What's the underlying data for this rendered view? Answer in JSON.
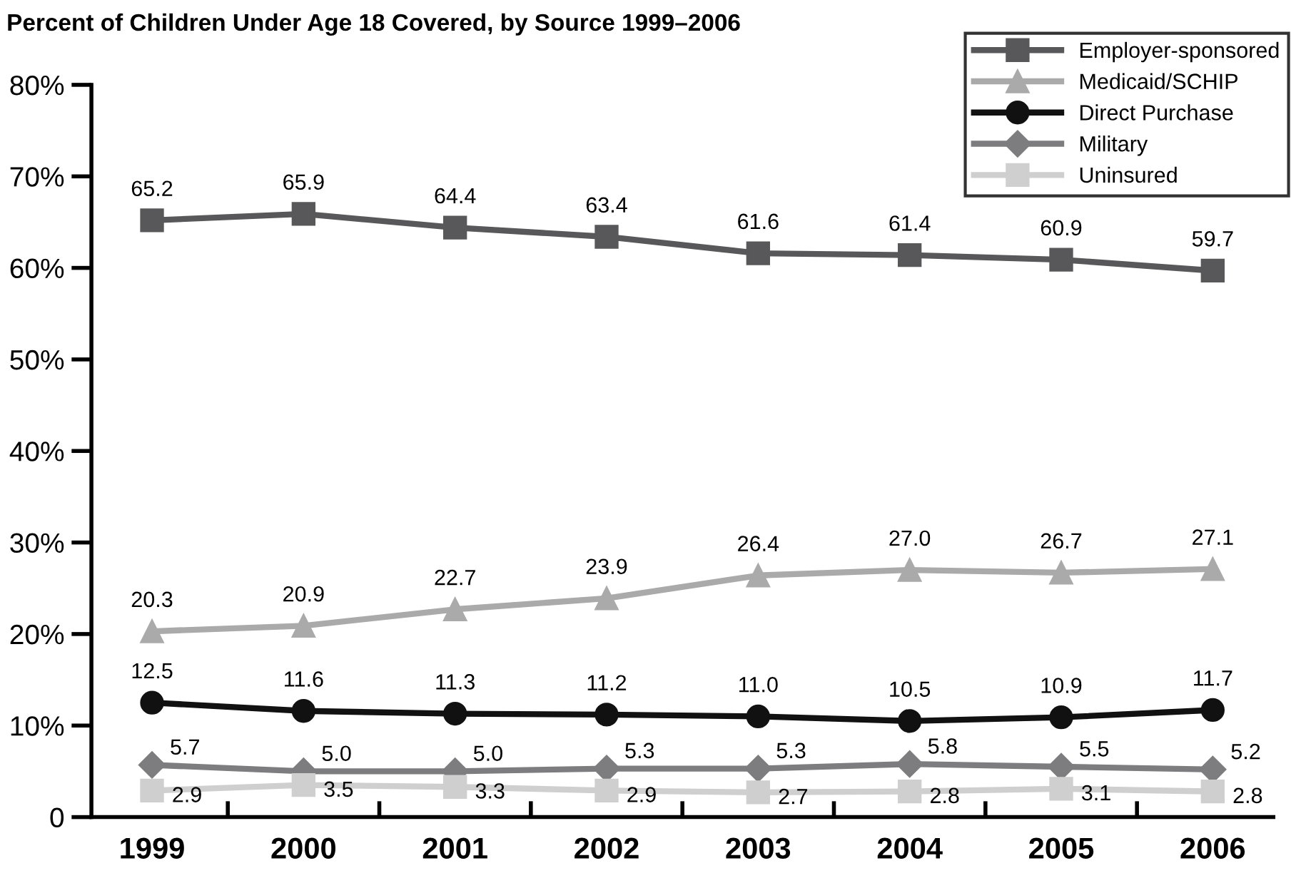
{
  "chart_data": {
    "type": "line",
    "title": "Percent of Children Under Age 18 Covered, by Source 1999–2006",
    "categories": [
      "1999",
      "2000",
      "2001",
      "2002",
      "2003",
      "2004",
      "2005",
      "2006"
    ],
    "series": [
      {
        "name": "Employer-sponsored",
        "color": "#58585a",
        "marker": "square",
        "values": [
          65.2,
          65.9,
          64.4,
          63.4,
          61.6,
          61.4,
          60.9,
          59.7
        ],
        "value_labels": [
          "65.2",
          "65.9",
          "64.4",
          "63.4",
          "61.6",
          "61.4",
          "60.9",
          "59.7"
        ]
      },
      {
        "name": "Medicaid/SCHIP",
        "color": "#aaaaaa",
        "marker": "triangle",
        "values": [
          20.3,
          20.9,
          22.7,
          23.9,
          26.4,
          27.0,
          26.7,
          27.1
        ],
        "value_labels": [
          "20.3",
          "20.9",
          "22.7",
          "23.9",
          "26.4",
          "27.0",
          "26.7",
          "27.1"
        ]
      },
      {
        "name": "Direct Purchase",
        "color": "#111111",
        "marker": "circle",
        "values": [
          12.5,
          11.6,
          11.3,
          11.2,
          11.0,
          10.5,
          10.9,
          11.7
        ],
        "value_labels": [
          "12.5",
          "11.6",
          "11.3",
          "11.2",
          "11.0",
          "10.5",
          "10.9",
          "11.7"
        ]
      },
      {
        "name": "Military",
        "color": "#7d7d80",
        "marker": "diamond",
        "values": [
          5.7,
          5.0,
          5.0,
          5.3,
          5.3,
          5.8,
          5.5,
          5.2
        ],
        "value_labels": [
          "5.7",
          "5.0",
          "5.0",
          "5.3",
          "5.3",
          "5.8",
          "5.5",
          "5.2"
        ]
      },
      {
        "name": "Uninsured",
        "color": "#cfcfcf",
        "marker": "square",
        "values": [
          2.9,
          3.5,
          3.3,
          2.9,
          2.7,
          2.8,
          3.1,
          2.8
        ],
        "value_labels": [
          "2.9",
          "3.5",
          "3.3",
          "2.9",
          "2.7",
          "2.8",
          "3.1",
          "2.8"
        ]
      }
    ],
    "ylim": [
      0,
      80
    ],
    "yticks": [
      {
        "value": 0,
        "label": "0"
      },
      {
        "value": 10,
        "label": "10%"
      },
      {
        "value": 20,
        "label": "20%"
      },
      {
        "value": 30,
        "label": "30%"
      },
      {
        "value": 40,
        "label": "40%"
      },
      {
        "value": 50,
        "label": "50%"
      },
      {
        "value": 60,
        "label": "60%"
      },
      {
        "value": 70,
        "label": "70%"
      },
      {
        "value": 80,
        "label": "80%"
      }
    ],
    "grid": false,
    "legend": "top right",
    "line_style": "solid"
  }
}
